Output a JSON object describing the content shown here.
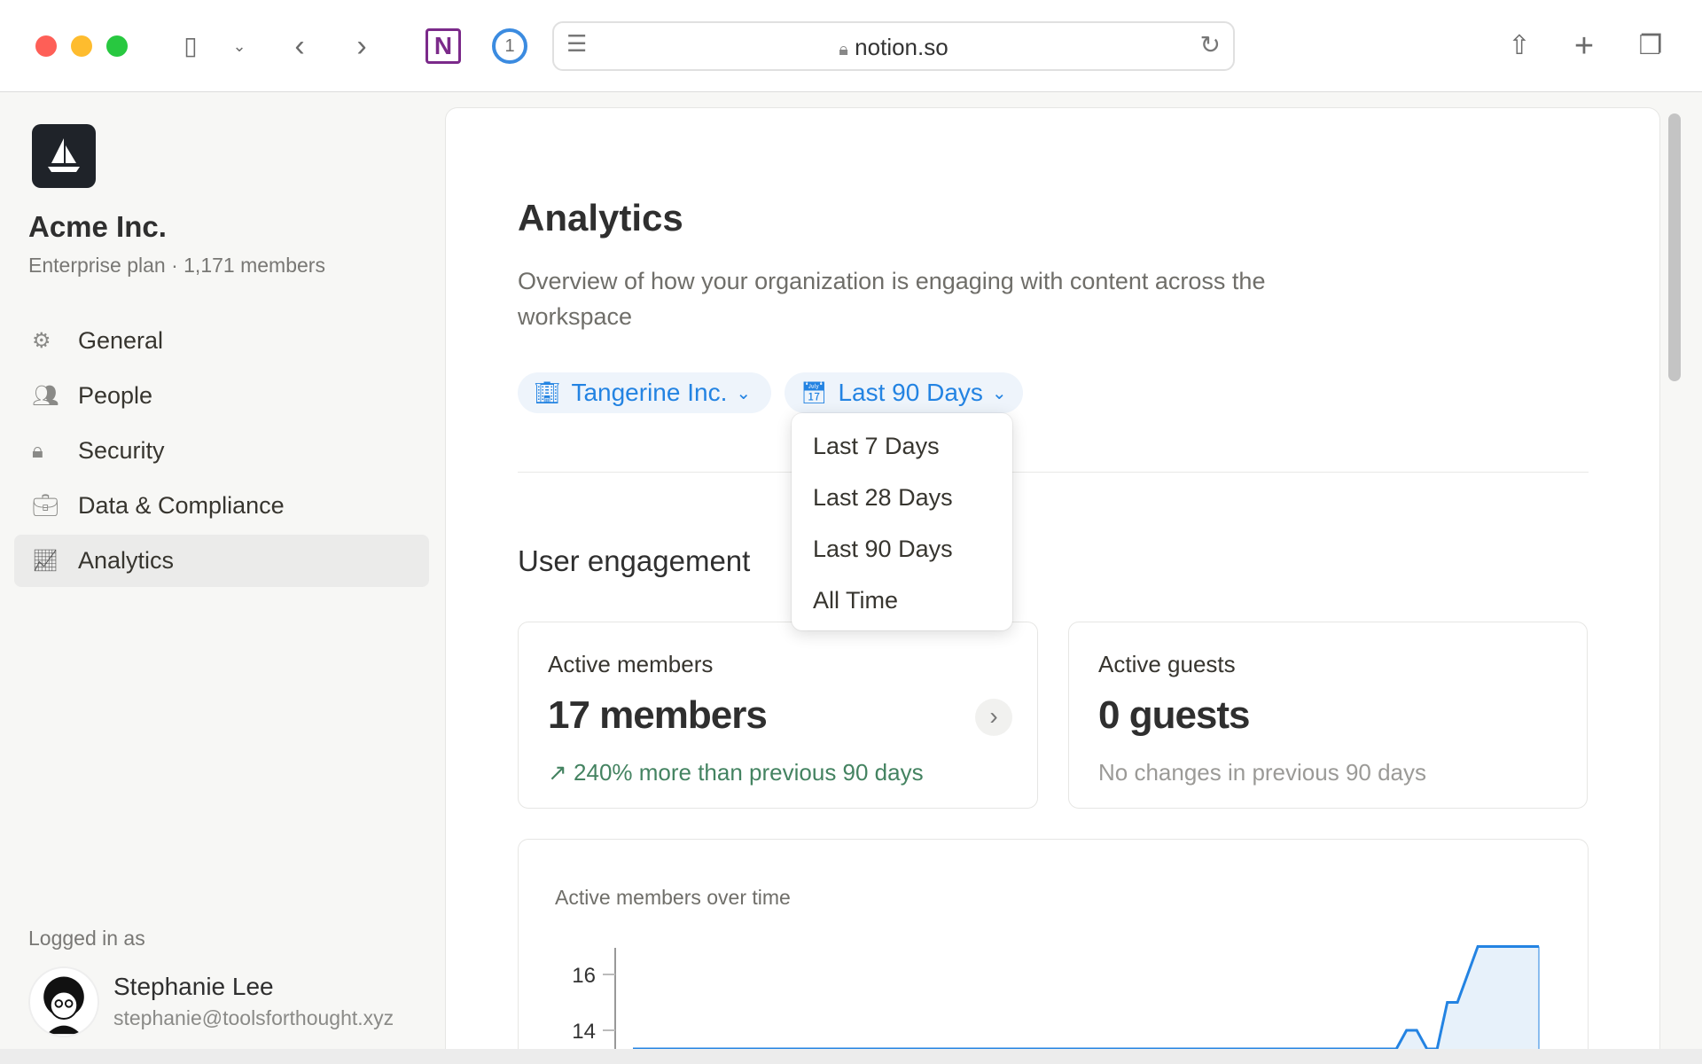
{
  "browser": {
    "url": "notion.so"
  },
  "sidebar": {
    "org_name": "Acme Inc.",
    "plan": "Enterprise plan · 1,171 members",
    "items": [
      {
        "label": "General",
        "icon": "gear-icon"
      },
      {
        "label": "People",
        "icon": "people-icon"
      },
      {
        "label": "Security",
        "icon": "lock-icon"
      },
      {
        "label": "Data & Compliance",
        "icon": "briefcase-icon"
      },
      {
        "label": "Analytics",
        "icon": "chart-icon",
        "active": true
      }
    ],
    "logged_in_label": "Logged in as",
    "user_name": "Stephanie Lee",
    "user_email": "stephanie@toolsforthought.xyz"
  },
  "main": {
    "title": "Analytics",
    "description": "Overview of how your organization is engaging with content across the workspace",
    "filters": {
      "workspace": "Tangerine Inc.",
      "range": "Last 90 Days"
    },
    "range_options": [
      "Last 7 Days",
      "Last 28 Days",
      "Last 90 Days",
      "All Time"
    ],
    "section": "User engagement",
    "cards": [
      {
        "title": "Active members",
        "value": "17 members",
        "note": "240% more than previous 90 days",
        "note_color": "#448361"
      },
      {
        "title": "Active guests",
        "value": "0 guests",
        "note": "No changes in previous 90 days",
        "note_color": "#9b9a97"
      }
    ]
  },
  "chart_data": {
    "type": "area",
    "title": "Active members over time",
    "yticks": [
      14,
      16
    ],
    "color": "#2383e2",
    "fill": "#e7f1fa",
    "values": [
      13,
      13,
      13,
      13,
      13,
      13,
      13,
      13,
      13,
      13,
      13,
      13,
      13,
      13,
      13,
      13,
      13,
      13,
      13,
      13,
      13,
      13,
      13,
      13,
      13,
      13,
      13,
      13,
      13,
      13,
      13,
      13,
      13,
      13,
      13,
      13,
      13,
      13,
      13,
      13,
      13,
      13,
      13,
      13,
      13,
      13,
      13,
      13,
      13,
      13,
      13,
      13,
      13,
      13,
      13,
      13,
      13,
      13,
      13,
      13,
      13,
      13,
      13,
      13,
      13,
      13,
      13,
      13,
      13,
      13,
      13,
      13,
      13,
      13,
      13,
      13,
      14,
      14,
      13,
      13,
      15,
      15,
      16,
      17,
      17,
      17,
      17,
      17,
      17,
      17
    ]
  }
}
